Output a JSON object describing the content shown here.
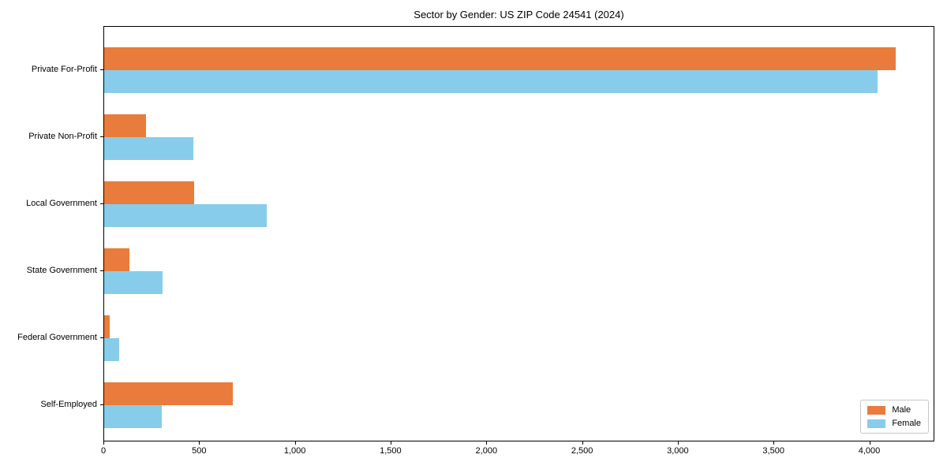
{
  "title": "Sector by Gender: US ZIP Code 24541 (2024)",
  "chart_data": {
    "type": "bar",
    "orientation": "horizontal",
    "title": "Sector by Gender: US ZIP Code 24541 (2024)",
    "xlabel": "",
    "ylabel": "",
    "categories": [
      "Private For-Profit",
      "Private Non-Profit",
      "Local Government",
      "State Government",
      "Federal Government",
      "Self-Employed"
    ],
    "series": [
      {
        "name": "Male",
        "color": "#e97c3c",
        "values": [
          4135,
          220,
          470,
          130,
          30,
          670
        ]
      },
      {
        "name": "Female",
        "color": "#87cdeb",
        "values": [
          4040,
          465,
          850,
          305,
          80,
          300
        ]
      }
    ],
    "xlim": [
      0,
      4340
    ],
    "xticks": [
      0,
      500,
      1000,
      1500,
      2000,
      2500,
      3000,
      3500,
      4000
    ],
    "xtick_labels": [
      "0",
      "500",
      "1,000",
      "1,500",
      "2,000",
      "2,500",
      "3,000",
      "3,500",
      "4,000"
    ],
    "grid": false,
    "legend_position": "lower right",
    "colors": {
      "male": "#e97c3c",
      "female": "#87cdeb",
      "spine": "#000000",
      "legend_border": "#c8c8c8"
    }
  }
}
